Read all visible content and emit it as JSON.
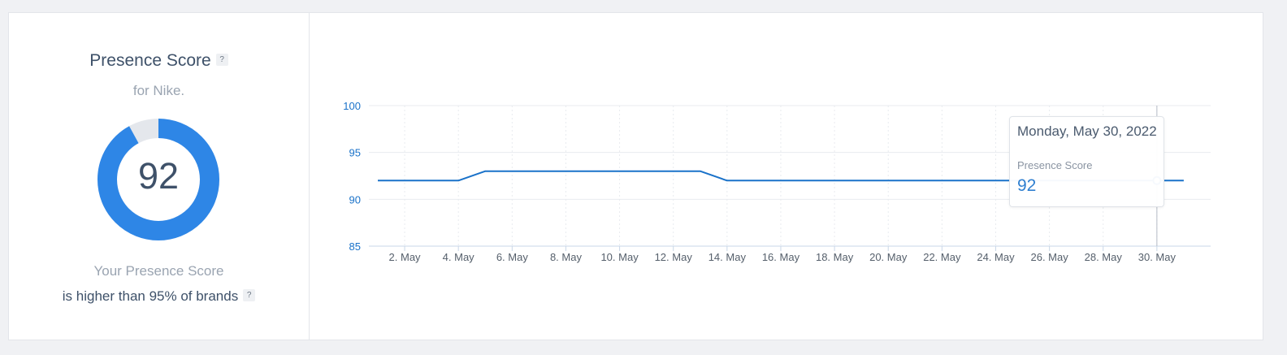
{
  "score_panel": {
    "title": "Presence Score",
    "help_glyph": "?",
    "subtitle": "for Nike.",
    "score": "92",
    "score_fraction": 0.92,
    "caption_line1": "Your Presence Score",
    "caption_line2": "is higher than 95% of brands",
    "ring_color": "#2e86e6",
    "ring_track_color": "#e4e7ec"
  },
  "tooltip": {
    "date": "Monday, May 30, 2022",
    "series": "Presence Score",
    "value": "92"
  },
  "chart_data": {
    "type": "line",
    "title": "",
    "xlabel": "",
    "ylabel": "",
    "x": [
      "2022-05-01",
      "2022-05-02",
      "2022-05-03",
      "2022-05-04",
      "2022-05-05",
      "2022-05-06",
      "2022-05-07",
      "2022-05-08",
      "2022-05-09",
      "2022-05-10",
      "2022-05-11",
      "2022-05-12",
      "2022-05-13",
      "2022-05-14",
      "2022-05-15",
      "2022-05-16",
      "2022-05-17",
      "2022-05-18",
      "2022-05-19",
      "2022-05-20",
      "2022-05-21",
      "2022-05-22",
      "2022-05-23",
      "2022-05-24",
      "2022-05-25",
      "2022-05-26",
      "2022-05-27",
      "2022-05-28",
      "2022-05-29",
      "2022-05-30",
      "2022-05-31"
    ],
    "series": [
      {
        "values": [
          92,
          92,
          92,
          92,
          93,
          93,
          93,
          93,
          93,
          93,
          93,
          93,
          93,
          92,
          92,
          92,
          92,
          92,
          92,
          92,
          92,
          92,
          92,
          92,
          92,
          92,
          92,
          92,
          92,
          92,
          92
        ]
      }
    ],
    "x_tick_labels": [
      "2. May",
      "4. May",
      "6. May",
      "8. May",
      "10. May",
      "12. May",
      "14. May",
      "16. May",
      "18. May",
      "20. May",
      "22. May",
      "24. May",
      "26. May",
      "28. May",
      "30. May"
    ],
    "y_ticks": [
      85,
      90,
      95,
      100
    ],
    "ylim": [
      85,
      100
    ],
    "grid": true,
    "highlighted_x": "2022-05-30",
    "colors": {
      "line": "#1a72c9",
      "axis_text": "#1a72c9",
      "tick_text": "#555f6b",
      "grid": "#e8ebef",
      "crosshair": "#b5bcc6"
    }
  }
}
